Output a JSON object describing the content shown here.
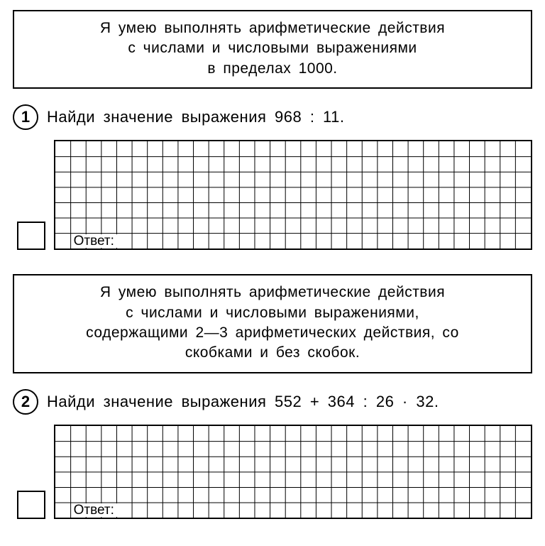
{
  "page": {
    "background_color": "#ffffff",
    "text_color": "#000000",
    "font_family": "Arial, Helvetica, sans-serif"
  },
  "skill1": {
    "line1": "Я умею выполнять арифметические действия",
    "line2": "с числами и числовыми выражениями",
    "line3": "в пределах 1000."
  },
  "task1": {
    "number": "1",
    "text": "Найди значение выражения 968 : 11.",
    "answer_label": "Ответ:",
    "grid": {
      "cols": 31,
      "rows": 7,
      "cell": 21.6,
      "line_color": "#000000",
      "line_width": 1,
      "answer_row_from_bottom": 1,
      "answer_col_start": 1,
      "answer_col_span": 4
    }
  },
  "skill2": {
    "line1": "Я умею выполнять арифметические действия",
    "line2": "с числами и числовыми выражениями,",
    "line3": "содержащими 2—3 арифметических действия, со",
    "line4": "скобками и без скобок."
  },
  "task2": {
    "number": "2",
    "text": "Найди значение выражения 552 + 364 : 26 · 32.",
    "answer_label": "Ответ:",
    "grid": {
      "cols": 31,
      "rows": 6,
      "cell": 21.6,
      "line_color": "#000000",
      "line_width": 1,
      "answer_row_from_bottom": 1,
      "answer_col_start": 1,
      "answer_col_span": 4
    }
  }
}
